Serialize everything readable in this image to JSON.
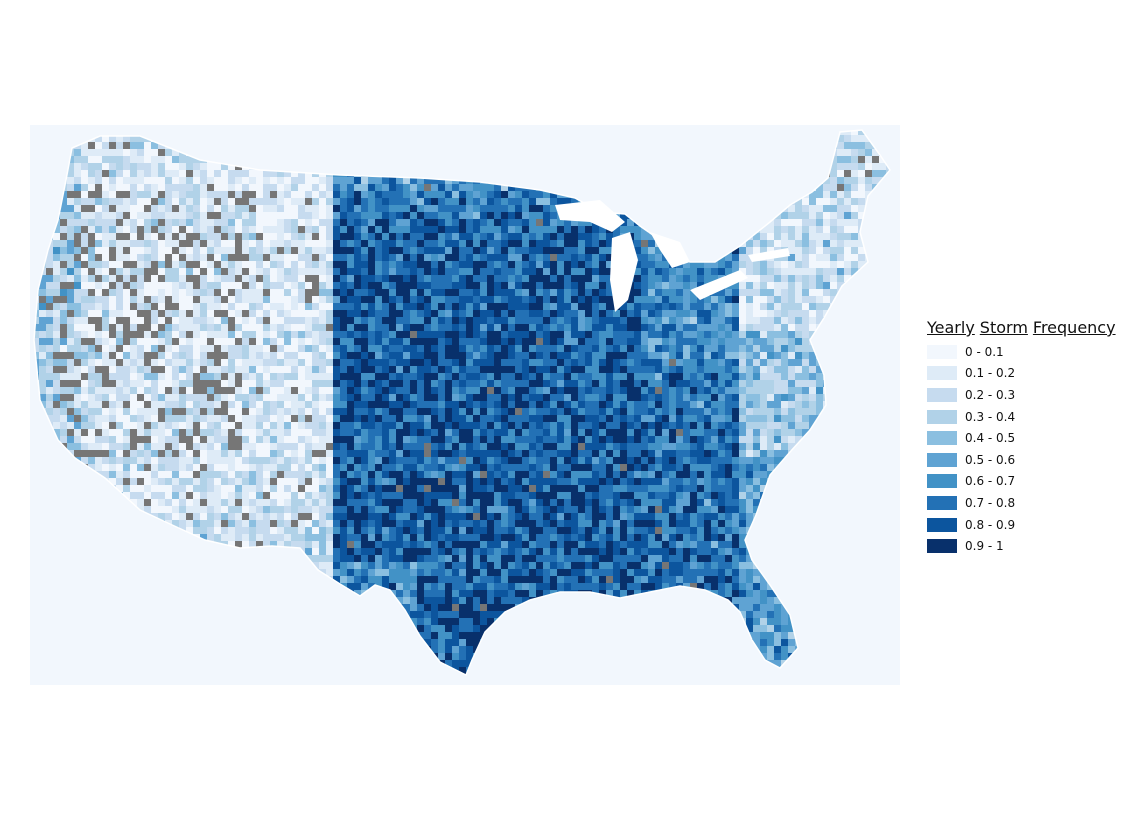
{
  "legend": {
    "title_words": [
      "Yearly",
      "Storm",
      "Frequency"
    ],
    "items": [
      {
        "label": "0 - 0.1",
        "color": "#f2f7fd"
      },
      {
        "label": "0.1 - 0.2",
        "color": "#deebf7"
      },
      {
        "label": "0.2 - 0.3",
        "color": "#c6dbef"
      },
      {
        "label": "0.3 - 0.4",
        "color": "#b1d2e8"
      },
      {
        "label": "0.4 - 0.5",
        "color": "#8bbfe0"
      },
      {
        "label": "0.5 - 0.6",
        "color": "#5fa3d3"
      },
      {
        "label": "0.6 - 0.7",
        "color": "#4292c6"
      },
      {
        "label": "0.7 - 0.8",
        "color": "#2371b5"
      },
      {
        "label": "0.8 - 0.9",
        "color": "#0c559e"
      },
      {
        "label": "0.9 - 1",
        "color": "#08306b"
      }
    ]
  },
  "no_data_color": "#767676",
  "map": {
    "region": "contiguous-us",
    "pattern": "low frequency in the west, high frequency in the central plains and southeast, moderate in the northeast"
  }
}
